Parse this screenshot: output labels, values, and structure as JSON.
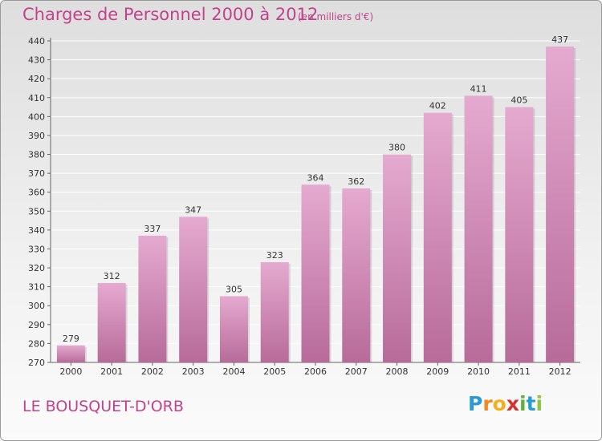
{
  "header": {
    "title": "Charges de Personnel 2000 à 2012",
    "subtitle": "(en milliers d'€)"
  },
  "footer": {
    "place": "LE BOUSQUET-D'ORB",
    "logo": "Proxiti"
  },
  "colors": {
    "bar_top": "#e5aad0",
    "bar_bottom": "#b76b99",
    "accent": "#c2428c",
    "grid": "#ffffff"
  },
  "chart_data": {
    "type": "bar",
    "title": "Charges de Personnel 2000 à 2012",
    "subtitle": "(en milliers d'€)",
    "categories": [
      "2000",
      "2001",
      "2002",
      "2003",
      "2004",
      "2005",
      "2006",
      "2007",
      "2008",
      "2009",
      "2010",
      "2011",
      "2012"
    ],
    "values": [
      279,
      312,
      337,
      347,
      305,
      323,
      364,
      362,
      380,
      402,
      411,
      405,
      437
    ],
    "data_labels": [
      "279",
      "312",
      "337",
      "347",
      "305",
      "323",
      "364",
      "362",
      "380",
      "402",
      "411",
      "405",
      "437"
    ],
    "ylim": [
      270,
      440
    ],
    "ytick_step": 10,
    "yticks": [
      "270",
      "280",
      "290",
      "300",
      "310",
      "320",
      "330",
      "340",
      "350",
      "360",
      "370",
      "380",
      "390",
      "400",
      "410",
      "420",
      "430",
      "440"
    ],
    "grid": true,
    "xlabel": "",
    "ylabel": ""
  }
}
